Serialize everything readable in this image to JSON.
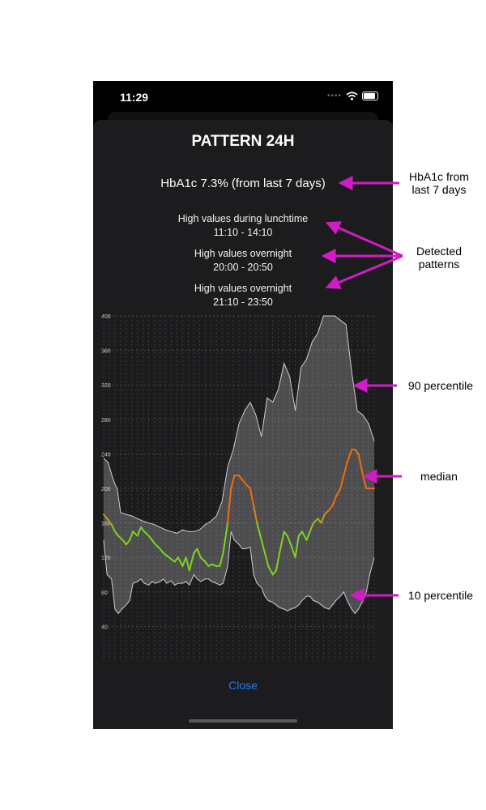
{
  "status_bar": {
    "time": "11:29"
  },
  "header": {
    "title": "PATTERN 24H"
  },
  "summary": {
    "hba1c": "HbA1c  7.3% (from last 7 days)"
  },
  "patterns": [
    {
      "line1": "High values during lunchtime",
      "line2": "11:10 - 14:10"
    },
    {
      "line1": "High values overnight",
      "line2": "20:00 - 20:50"
    },
    {
      "line1": "High values overnight",
      "line2": "21:10 - 23:50"
    }
  ],
  "close_label": "Close",
  "annotations": {
    "hba1c": [
      "HbA1c from",
      "last 7 days"
    ],
    "patterns": [
      "Detected",
      "patterns"
    ],
    "p90": "90 percentile",
    "median": "median",
    "p10": "10 percentile"
  },
  "colors": {
    "accent": "#1a7cf3",
    "annotation_arrow": "#d11bc6",
    "median_low": "#7ed321",
    "median_high": "#f26c0d"
  },
  "chart_data": {
    "type": "area",
    "x_ticks": [
      "0",
      "1",
      "2",
      "3",
      "4",
      "5",
      "6",
      "7",
      "8",
      "9",
      "10",
      "11",
      "12",
      "13",
      "14",
      "15",
      "16",
      "17",
      "18",
      "19",
      "20",
      "21",
      "22",
      "23"
    ],
    "y_ticks": [
      40,
      80,
      120,
      160,
      200,
      240,
      280,
      320,
      360,
      400
    ],
    "ylim": [
      0,
      400
    ],
    "xlim": [
      0,
      24
    ],
    "grid": true,
    "series": [
      {
        "name": "90 percentile",
        "x": [
          0,
          0.4,
          0.8,
          1,
          1.2,
          1.5,
          2,
          2.5,
          3,
          3.5,
          4,
          4.5,
          5,
          5.5,
          6,
          6.5,
          7,
          7.5,
          8,
          8.5,
          9,
          9.5,
          10,
          10.5,
          11,
          11.5,
          12,
          12.5,
          13,
          13.5,
          14,
          14.5,
          15,
          15.5,
          16,
          16.5,
          17,
          17.5,
          18,
          18.5,
          19,
          19.5,
          20,
          20.5,
          21,
          21.5,
          22,
          22.5,
          23,
          23.5,
          24
        ],
        "values": [
          235,
          230,
          212,
          205,
          200,
          172,
          170,
          168,
          165,
          162,
          160,
          158,
          155,
          152,
          150,
          148,
          152,
          150,
          150,
          152,
          158,
          162,
          168,
          185,
          225,
          245,
          275,
          290,
          300,
          285,
          260,
          305,
          300,
          315,
          345,
          330,
          290,
          340,
          350,
          370,
          380,
          400,
          400,
          400,
          395,
          390,
          335,
          290,
          285,
          275,
          255
        ]
      },
      {
        "name": "median",
        "x": [
          0,
          0.3,
          0.7,
          1,
          1.3,
          1.7,
          2,
          2.3,
          2.6,
          3,
          3.3,
          3.6,
          4,
          4.3,
          4.6,
          5,
          5.3,
          5.6,
          6,
          6.3,
          6.6,
          7,
          7.3,
          7.6,
          8,
          8.3,
          8.6,
          9,
          9.3,
          9.6,
          10,
          10.3,
          10.6,
          11,
          11.3,
          11.6,
          12,
          12.3,
          12.6,
          13,
          13.3,
          13.6,
          14,
          14.3,
          14.6,
          15,
          15.3,
          15.6,
          16,
          16.3,
          16.6,
          17,
          17.3,
          17.6,
          18,
          18.3,
          18.6,
          19,
          19.3,
          19.6,
          20,
          20.3,
          20.6,
          21,
          21.3,
          21.6,
          22,
          22.3,
          22.6,
          23,
          23.3,
          23.6,
          24
        ],
        "values": [
          170,
          165,
          158,
          150,
          145,
          140,
          135,
          140,
          150,
          145,
          155,
          150,
          145,
          140,
          135,
          130,
          125,
          122,
          118,
          115,
          120,
          110,
          120,
          105,
          125,
          130,
          120,
          115,
          110,
          112,
          110,
          110,
          125,
          160,
          200,
          215,
          215,
          210,
          205,
          200,
          180,
          160,
          140,
          125,
          110,
          100,
          105,
          125,
          150,
          145,
          135,
          120,
          145,
          150,
          140,
          150,
          160,
          165,
          160,
          170,
          175,
          180,
          190,
          200,
          215,
          230,
          245,
          245,
          240,
          215,
          200,
          200,
          200
        ]
      },
      {
        "name": "10 percentile",
        "x": [
          0,
          0.3,
          0.7,
          1,
          1.3,
          1.6,
          2,
          2.3,
          2.6,
          3,
          3.3,
          3.6,
          4,
          4.3,
          4.6,
          5,
          5.3,
          5.6,
          6,
          6.3,
          6.6,
          7,
          7.3,
          7.6,
          8,
          8.3,
          8.6,
          9,
          9.3,
          9.6,
          10,
          10.3,
          10.6,
          11,
          11.3,
          11.6,
          12,
          12.3,
          12.6,
          13,
          13.3,
          13.6,
          14,
          14.3,
          14.6,
          15,
          15.3,
          15.6,
          16,
          16.3,
          16.6,
          17,
          17.3,
          17.6,
          18,
          18.3,
          18.6,
          19,
          19.3,
          19.6,
          20,
          20.3,
          20.6,
          21,
          21.3,
          21.6,
          22,
          22.3,
          22.6,
          23,
          23.3,
          23.6,
          24
        ],
        "values": [
          140,
          100,
          95,
          60,
          55,
          60,
          65,
          70,
          90,
          92,
          95,
          90,
          88,
          92,
          90,
          92,
          95,
          90,
          93,
          88,
          90,
          90,
          92,
          88,
          100,
          95,
          92,
          95,
          95,
          92,
          90,
          88,
          90,
          110,
          150,
          140,
          135,
          130,
          130,
          132,
          100,
          90,
          85,
          75,
          70,
          68,
          65,
          62,
          60,
          58,
          60,
          62,
          65,
          70,
          75,
          75,
          70,
          68,
          65,
          62,
          60,
          65,
          70,
          75,
          80,
          70,
          60,
          55,
          60,
          70,
          80,
          100,
          120
        ]
      }
    ]
  }
}
